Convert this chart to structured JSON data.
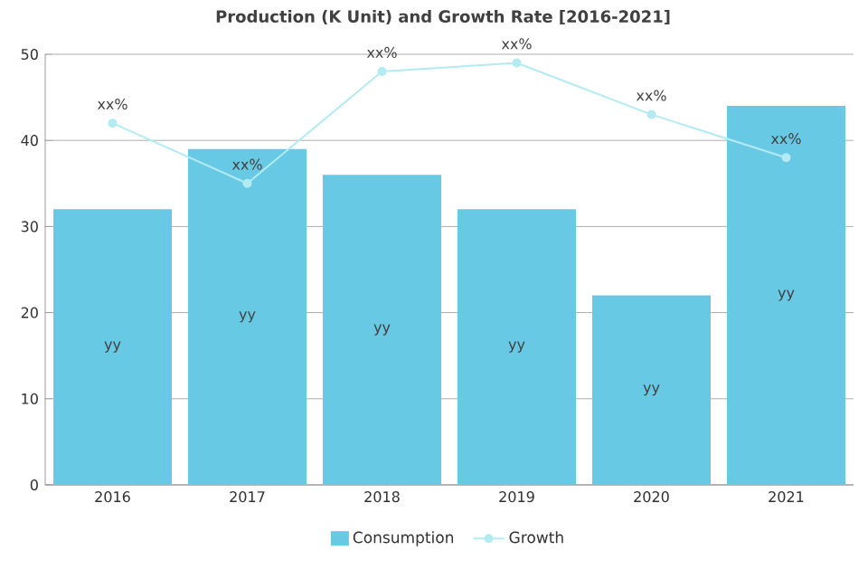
{
  "chart_data": {
    "type": "bar",
    "title": "Production (K Unit) and Growth Rate [2016-2021]",
    "categories": [
      "2016",
      "2017",
      "2018",
      "2019",
      "2020",
      "2021"
    ],
    "series": [
      {
        "name": "Consumption",
        "color": "#68c9e4",
        "values": [
          32,
          39,
          36,
          32,
          22,
          44
        ],
        "value_labels": [
          "yy",
          "yy",
          "yy",
          "yy",
          "yy",
          "yy"
        ]
      },
      {
        "name": "Growth",
        "type": "line",
        "color": "#b2ebf2",
        "marker": "circle",
        "values": [
          42,
          35,
          48,
          49,
          43,
          38
        ],
        "value_labels": [
          "xx%",
          "xx%",
          "xx%",
          "xx%",
          "xx%",
          "xx%"
        ]
      }
    ],
    "ylim": [
      0,
      50
    ],
    "yticks": [
      0,
      10,
      20,
      30,
      40,
      50
    ],
    "grid": "y",
    "legend": "bottom"
  }
}
